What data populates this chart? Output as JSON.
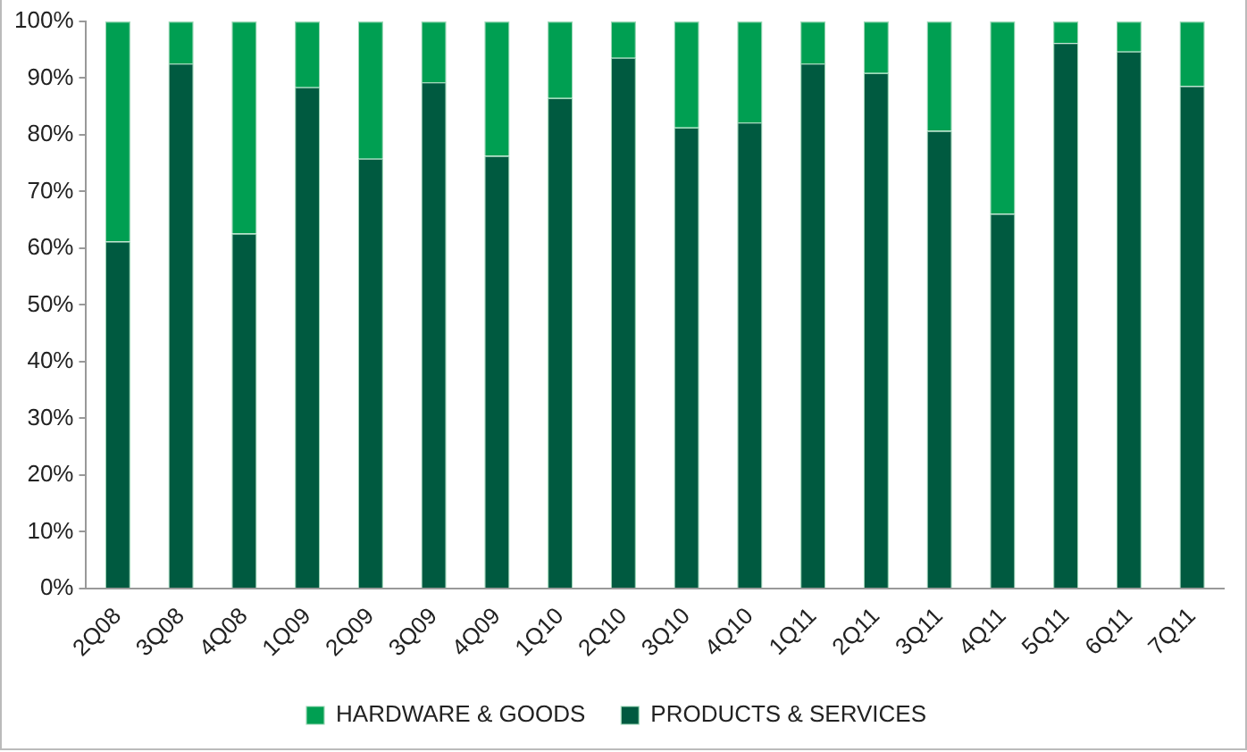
{
  "chart_data": {
    "type": "bar",
    "stacked": true,
    "categories": [
      "2Q08",
      "3Q08",
      "4Q08",
      "1Q09",
      "2Q09",
      "3Q09",
      "4Q09",
      "1Q10",
      "2Q10",
      "3Q10",
      "4Q10",
      "1Q11",
      "2Q11",
      "3Q11",
      "4Q11",
      "5Q11",
      "6Q11",
      "7Q11"
    ],
    "series": [
      {
        "name": "PRODUCTS & SERVICES",
        "color": "#005a40",
        "values": [
          61.2,
          92.6,
          62.6,
          88.4,
          75.8,
          89.3,
          76.3,
          86.5,
          93.6,
          81.3,
          82.2,
          92.6,
          90.9,
          80.7,
          66.1,
          96.2,
          94.7,
          88.6
        ]
      },
      {
        "name": "HARDWARE & GOODS",
        "color": "#009f52",
        "values": [
          38.8,
          7.4,
          37.4,
          11.6,
          24.2,
          10.7,
          23.7,
          13.5,
          6.4,
          18.7,
          17.8,
          7.4,
          9.1,
          19.3,
          33.9,
          3.8,
          5.3,
          11.4
        ]
      }
    ],
    "ylim": [
      0,
      100
    ],
    "yticks": [
      {
        "value": 0,
        "label": "0%"
      },
      {
        "value": 10,
        "label": "10%"
      },
      {
        "value": 20,
        "label": "20%"
      },
      {
        "value": 30,
        "label": "30%"
      },
      {
        "value": 40,
        "label": "40%"
      },
      {
        "value": 50,
        "label": "50%"
      },
      {
        "value": 60,
        "label": "60%"
      },
      {
        "value": 70,
        "label": "70%"
      },
      {
        "value": 80,
        "label": "80%"
      },
      {
        "value": 90,
        "label": "90%"
      },
      {
        "value": 100,
        "label": "100%"
      }
    ],
    "legend": "bottom"
  }
}
